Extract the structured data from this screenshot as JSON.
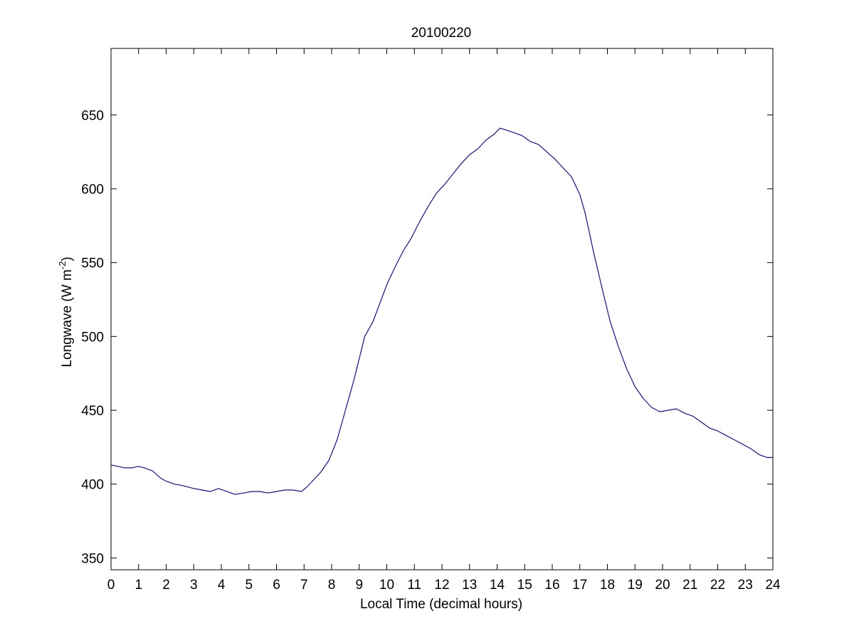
{
  "chart_data": {
    "type": "line",
    "title": "20100220",
    "xlabel": "Local Time (decimal hours)",
    "ylabel_main": "Longwave (W m",
    "ylabel_sup": "-2",
    "ylabel_close": ")",
    "xlim": [
      0,
      24
    ],
    "ylim": [
      342,
      695
    ],
    "xticks": [
      0,
      1,
      2,
      3,
      4,
      5,
      6,
      7,
      8,
      9,
      10,
      11,
      12,
      13,
      14,
      15,
      16,
      17,
      18,
      19,
      20,
      21,
      22,
      23,
      24
    ],
    "yticks": [
      350,
      400,
      450,
      500,
      550,
      600,
      650
    ],
    "grid": false,
    "line_color": "#1010a0",
    "series": [
      {
        "x": [
          0,
          0.25,
          0.5,
          0.75,
          1.0,
          1.2,
          1.5,
          1.8,
          2.0,
          2.3,
          2.6,
          3.0,
          3.3,
          3.6,
          3.9,
          4.2,
          4.5,
          4.8,
          5.1,
          5.4,
          5.7,
          6.0,
          6.3,
          6.6,
          6.9,
          7.1,
          7.3,
          7.6,
          7.9,
          8.2,
          8.5,
          8.8,
          9.0,
          9.2,
          9.5,
          9.8,
          10.0,
          10.3,
          10.6,
          10.9,
          11.2,
          11.5,
          11.8,
          12.1,
          12.4,
          12.7,
          13.0,
          13.3,
          13.6,
          13.9,
          14.1,
          14.3,
          14.6,
          14.9,
          15.2,
          15.5,
          15.8,
          16.1,
          16.4,
          16.7,
          17.0,
          17.2,
          17.5,
          17.8,
          18.1,
          18.4,
          18.7,
          19.0,
          19.3,
          19.6,
          19.9,
          20.2,
          20.5,
          20.8,
          21.1,
          21.4,
          21.7,
          22.0,
          22.3,
          22.6,
          22.9,
          23.2,
          23.5,
          23.8,
          24.0
        ],
        "values": [
          413,
          412,
          411,
          411,
          412,
          411,
          409,
          404,
          402,
          400,
          399,
          397,
          396,
          395,
          397,
          395,
          393,
          394,
          395,
          395,
          394,
          395,
          396,
          396,
          395,
          398,
          402,
          408,
          416,
          430,
          450,
          470,
          485,
          500,
          510,
          525,
          535,
          547,
          558,
          567,
          578,
          588,
          597,
          603,
          610,
          617,
          623,
          627,
          633,
          637,
          641,
          640,
          638,
          636,
          632,
          630,
          625,
          620,
          614,
          608,
          596,
          583,
          557,
          533,
          510,
          493,
          478,
          466,
          458,
          452,
          449,
          450,
          451,
          448,
          446,
          442,
          438,
          436,
          433,
          430,
          427,
          424,
          420,
          418,
          418
        ]
      }
    ]
  }
}
